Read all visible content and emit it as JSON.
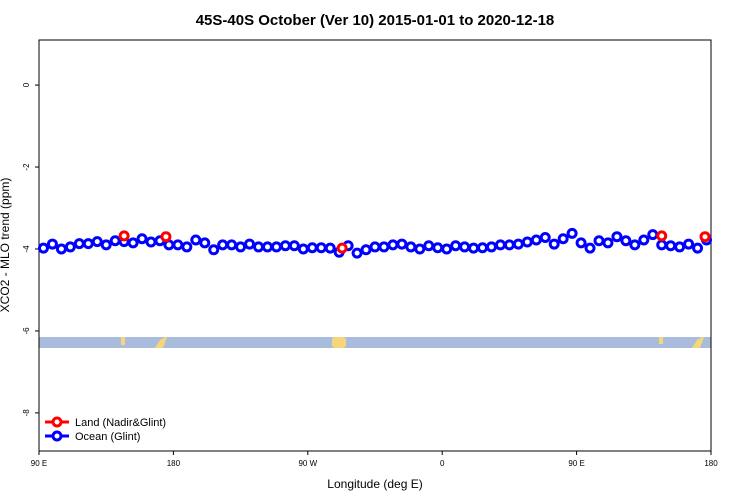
{
  "chart_data": {
    "type": "scatter",
    "title": "45S-40S October (Ver 10)   2015-01-01 to 2020-12-18",
    "x_label": "Longitude (deg E)",
    "y_label": "XCO2 - MLO trend (ppm)",
    "xlim": [
      90,
      540
    ],
    "ylim": [
      -8.93,
      1.1
    ],
    "xticks": [
      {
        "value": 90,
        "label": "90 E"
      },
      {
        "value": 180,
        "label": "180"
      },
      {
        "value": 270,
        "label": "90 W"
      },
      {
        "value": 360,
        "label": "0"
      },
      {
        "value": 450,
        "label": "90 E"
      },
      {
        "value": 540,
        "label": "180"
      }
    ],
    "yticks": [
      0,
      -2,
      -4,
      -6,
      -8
    ],
    "legend": "bottom-left",
    "series": [
      {
        "name": "Land (Nadir&Glint)",
        "color": "#ff0000",
        "x": [
          147,
          175,
          293,
          507,
          536
        ],
        "values": [
          -3.68,
          -3.7,
          -3.98,
          -3.68,
          -3.7
        ]
      },
      {
        "name": "Ocean (Glint)",
        "color": "#0000ff",
        "x": [
          93,
          99,
          105,
          111,
          117,
          123,
          129,
          135,
          141,
          147,
          153,
          159,
          165,
          171,
          177,
          183,
          189,
          195,
          201,
          207,
          213,
          219,
          225,
          231,
          237,
          243,
          249,
          255,
          261,
          267,
          273,
          279,
          285,
          291,
          297,
          303,
          309,
          315,
          321,
          327,
          333,
          339,
          345,
          351,
          357,
          363,
          369,
          375,
          381,
          387,
          393,
          399,
          405,
          411,
          417,
          423,
          429,
          435,
          441,
          447,
          453,
          459,
          465,
          471,
          477,
          483,
          489,
          495,
          501,
          507,
          513,
          519,
          525,
          531,
          537
        ],
        "values": [
          -3.98,
          -3.88,
          -4.0,
          -3.95,
          -3.87,
          -3.87,
          -3.82,
          -3.9,
          -3.8,
          -3.82,
          -3.85,
          -3.75,
          -3.83,
          -3.8,
          -3.9,
          -3.9,
          -3.95,
          -3.78,
          -3.85,
          -4.02,
          -3.9,
          -3.9,
          -3.95,
          -3.88,
          -3.95,
          -3.95,
          -3.95,
          -3.92,
          -3.92,
          -4.0,
          -3.97,
          -3.97,
          -3.98,
          -4.08,
          -3.92,
          -4.1,
          -4.02,
          -3.95,
          -3.95,
          -3.9,
          -3.88,
          -3.95,
          -4.0,
          -3.92,
          -3.97,
          -4.0,
          -3.92,
          -3.95,
          -3.98,
          -3.97,
          -3.95,
          -3.9,
          -3.9,
          -3.88,
          -3.83,
          -3.78,
          -3.72,
          -3.88,
          -3.75,
          -3.62,
          -3.85,
          -3.98,
          -3.8,
          -3.85,
          -3.7,
          -3.8,
          -3.9,
          -3.78,
          -3.65,
          -3.9,
          -3.92,
          -3.95,
          -3.88,
          -3.98,
          -3.78
        ]
      }
    ]
  }
}
